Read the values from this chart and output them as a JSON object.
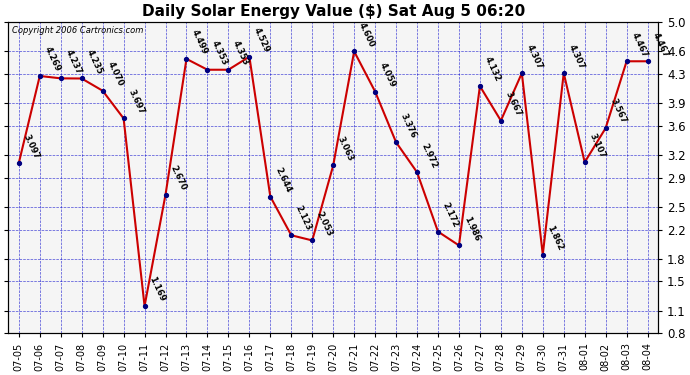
{
  "title": "Daily Solar Energy Value ($) Sat Aug 5 06:20",
  "copyright": "Copyright 2006 Cartronics.com",
  "dates": [
    "07-05",
    "07-06",
    "07-07",
    "07-08",
    "07-09",
    "07-10",
    "07-11",
    "07-12",
    "07-13",
    "07-14",
    "07-15",
    "07-16",
    "07-17",
    "07-18",
    "07-19",
    "07-20",
    "07-21",
    "07-22",
    "07-23",
    "07-24",
    "07-25",
    "07-26",
    "07-27",
    "07-28",
    "07-29",
    "07-30",
    "07-31",
    "08-01",
    "08-02",
    "08-03",
    "08-04"
  ],
  "values": [
    3.097,
    4.269,
    4.237,
    4.235,
    4.07,
    3.697,
    1.169,
    2.67,
    4.499,
    4.353,
    4.353,
    4.529,
    2.644,
    2.123,
    2.053,
    3.063,
    4.6,
    4.059,
    3.376,
    2.972,
    2.172,
    1.986,
    4.132,
    3.667,
    4.307,
    1.862,
    4.307,
    3.107,
    3.567,
    4.467,
    4.467
  ],
  "ylim": [
    0.8,
    5.0
  ],
  "yticks": [
    0.8,
    1.1,
    1.5,
    1.8,
    2.2,
    2.5,
    2.9,
    3.2,
    3.6,
    3.9,
    4.3,
    4.6,
    5.0
  ],
  "line_color": "#cc0000",
  "marker_color": "#000080",
  "grid_color": "#0000cc",
  "bg_color": "#ffffff",
  "plot_bg": "#f5f5f5",
  "label_fontsize": 6.0,
  "title_fontsize": 11,
  "ytick_fontsize": 8.5,
  "xtick_fontsize": 7.0
}
